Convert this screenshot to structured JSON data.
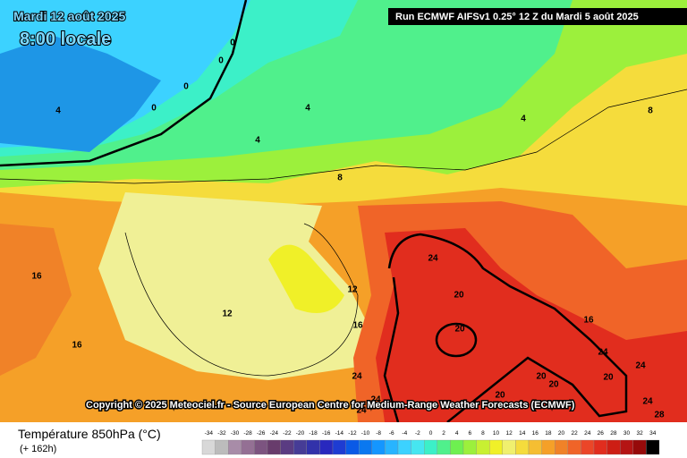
{
  "header": {
    "date": "Mardi 12 août 2025",
    "time": "8:00 locale",
    "run": "Run ECMWF AIFSv1 0.25° 12 Z du Mardi 5 août 2025"
  },
  "copyright": "Copyright © 2025 Meteociel.fr - Source European Centre for Medium-Range Weather Forecasts (ECMWF)",
  "footer": {
    "title": "Température 850hPa (°C)",
    "lead": "(+ 162h)"
  },
  "contour_labels": [
    "0",
    "0",
    "0",
    "0",
    "4",
    "4",
    "4",
    "4",
    "8",
    "8",
    "12",
    "12",
    "16",
    "16",
    "16",
    "16",
    "20",
    "20",
    "20",
    "20",
    "20",
    "20",
    "24",
    "24",
    "24",
    "24",
    "24",
    "24",
    "24",
    "28"
  ],
  "legend": {
    "values": [
      -34,
      -32,
      -30,
      -28,
      -26,
      -24,
      -22,
      -20,
      -18,
      -16,
      -14,
      -12,
      -10,
      -8,
      -6,
      -4,
      -2,
      0,
      2,
      4,
      6,
      8,
      10,
      12,
      14,
      16,
      18,
      20,
      22,
      24,
      26,
      28,
      30,
      32,
      34
    ],
    "colors": [
      "#d8d8d8",
      "#bcbcbc",
      "#a88ca8",
      "#947094",
      "#7c5480",
      "#683c6c",
      "#5a3c82",
      "#463c96",
      "#3232aa",
      "#2828be",
      "#1e3cd2",
      "#0a5ae6",
      "#0a78f0",
      "#1496ff",
      "#28b4ff",
      "#3cd2ff",
      "#46e6f0",
      "#3cf0c8",
      "#50f08c",
      "#6ef050",
      "#9cf03c",
      "#c8f032",
      "#f0f028",
      "#f0f06e",
      "#f5dc3c",
      "#f5be32",
      "#f5a028",
      "#f08228",
      "#f06428",
      "#eb4628",
      "#e12d1e",
      "#cd1e14",
      "#b41414",
      "#960a0a",
      "#000000"
    ]
  }
}
